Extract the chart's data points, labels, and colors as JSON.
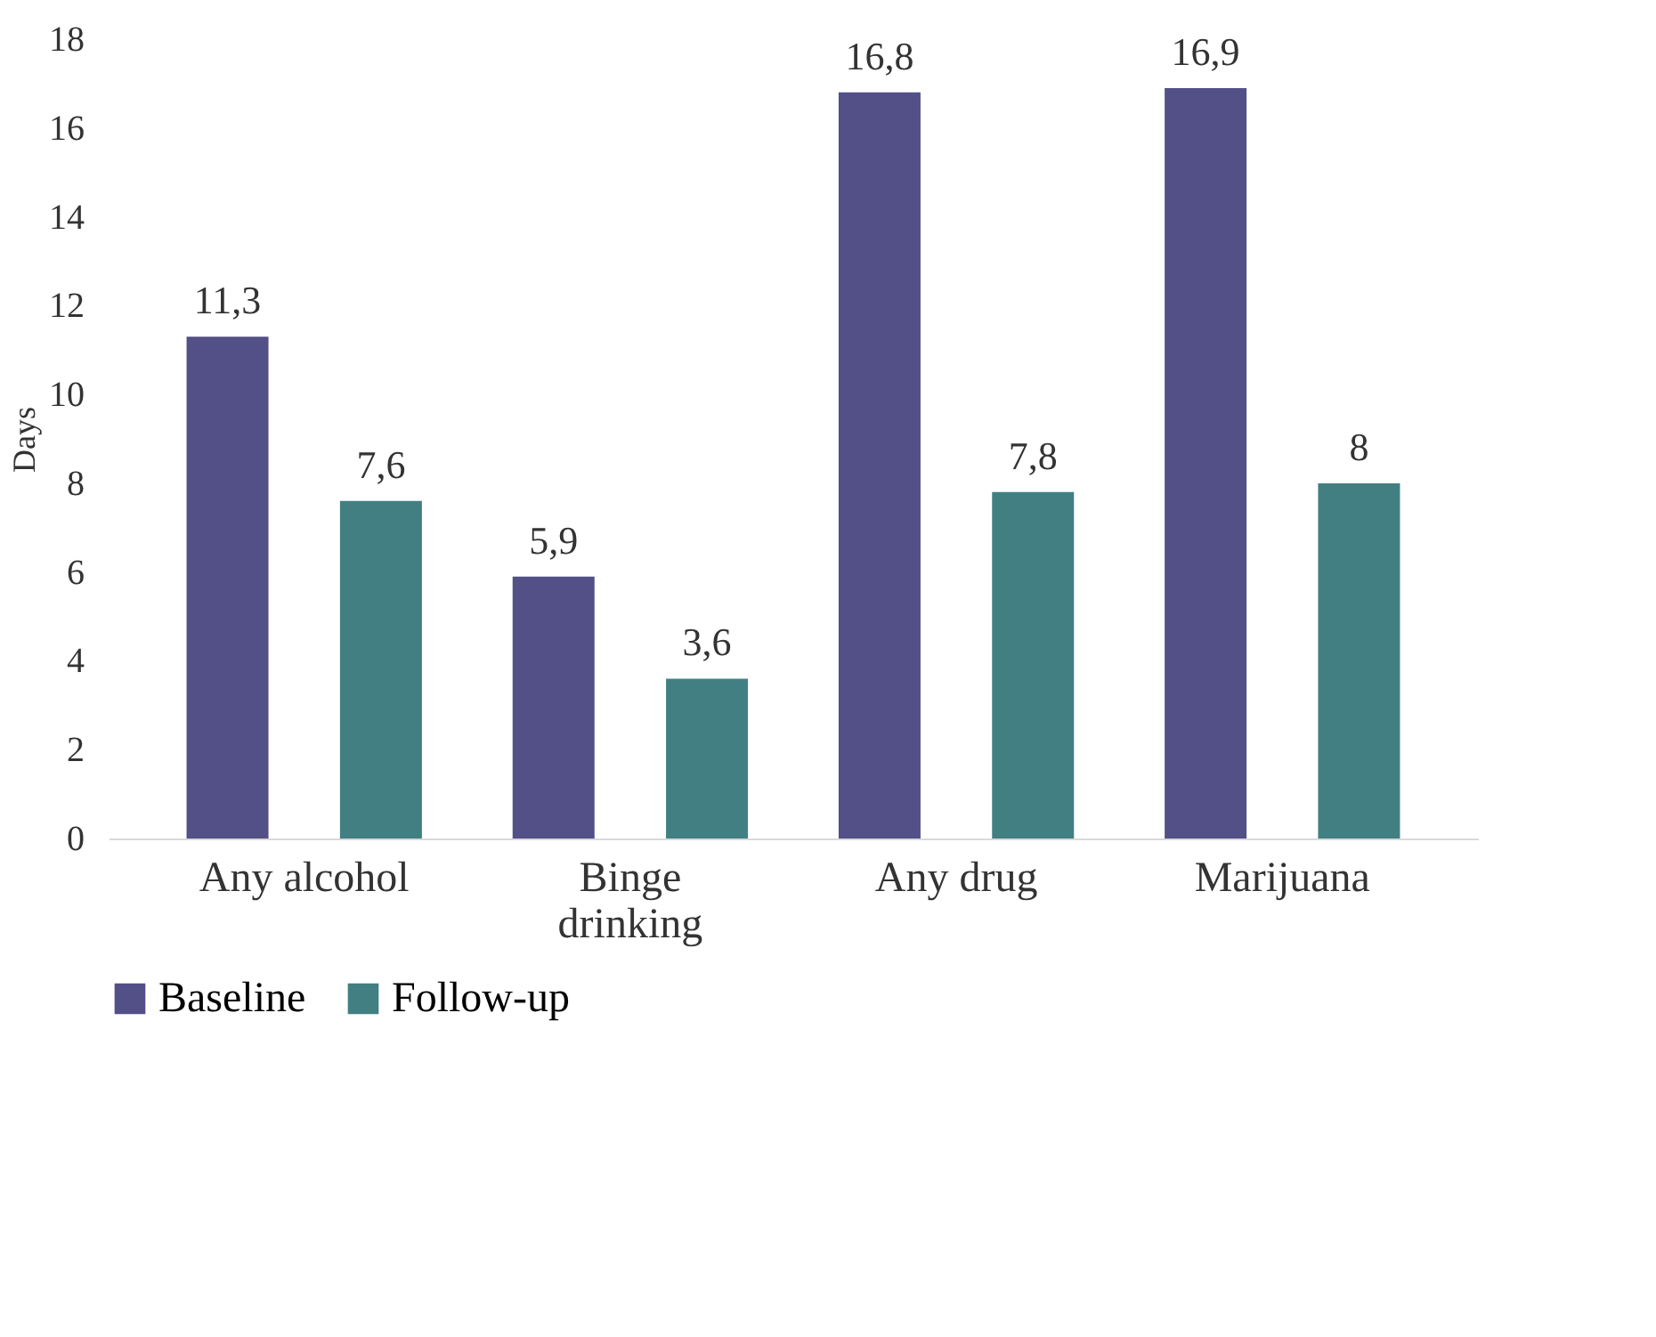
{
  "chart_data": {
    "type": "bar",
    "ylabel": "Days",
    "categories": [
      "Any alcohol",
      "Binge drinking",
      "Any drug",
      "Marijuana"
    ],
    "series": [
      {
        "name": "Baseline",
        "color": "#534f87",
        "values": [
          11.3,
          5.9,
          16.8,
          16.9
        ],
        "value_labels": [
          "11,3",
          "5,9",
          "16,8",
          "16,9"
        ]
      },
      {
        "name": "Follow-up",
        "color": "#417f83",
        "values": [
          7.6,
          3.6,
          7.8,
          8
        ],
        "value_labels": [
          "7,6",
          "3,6",
          "7,8",
          "8"
        ]
      }
    ],
    "ylim": [
      0,
      18
    ],
    "yticks": [
      0,
      2,
      4,
      6,
      8,
      10,
      12,
      14,
      16,
      18
    ],
    "grid": false,
    "legend": "bottom"
  }
}
